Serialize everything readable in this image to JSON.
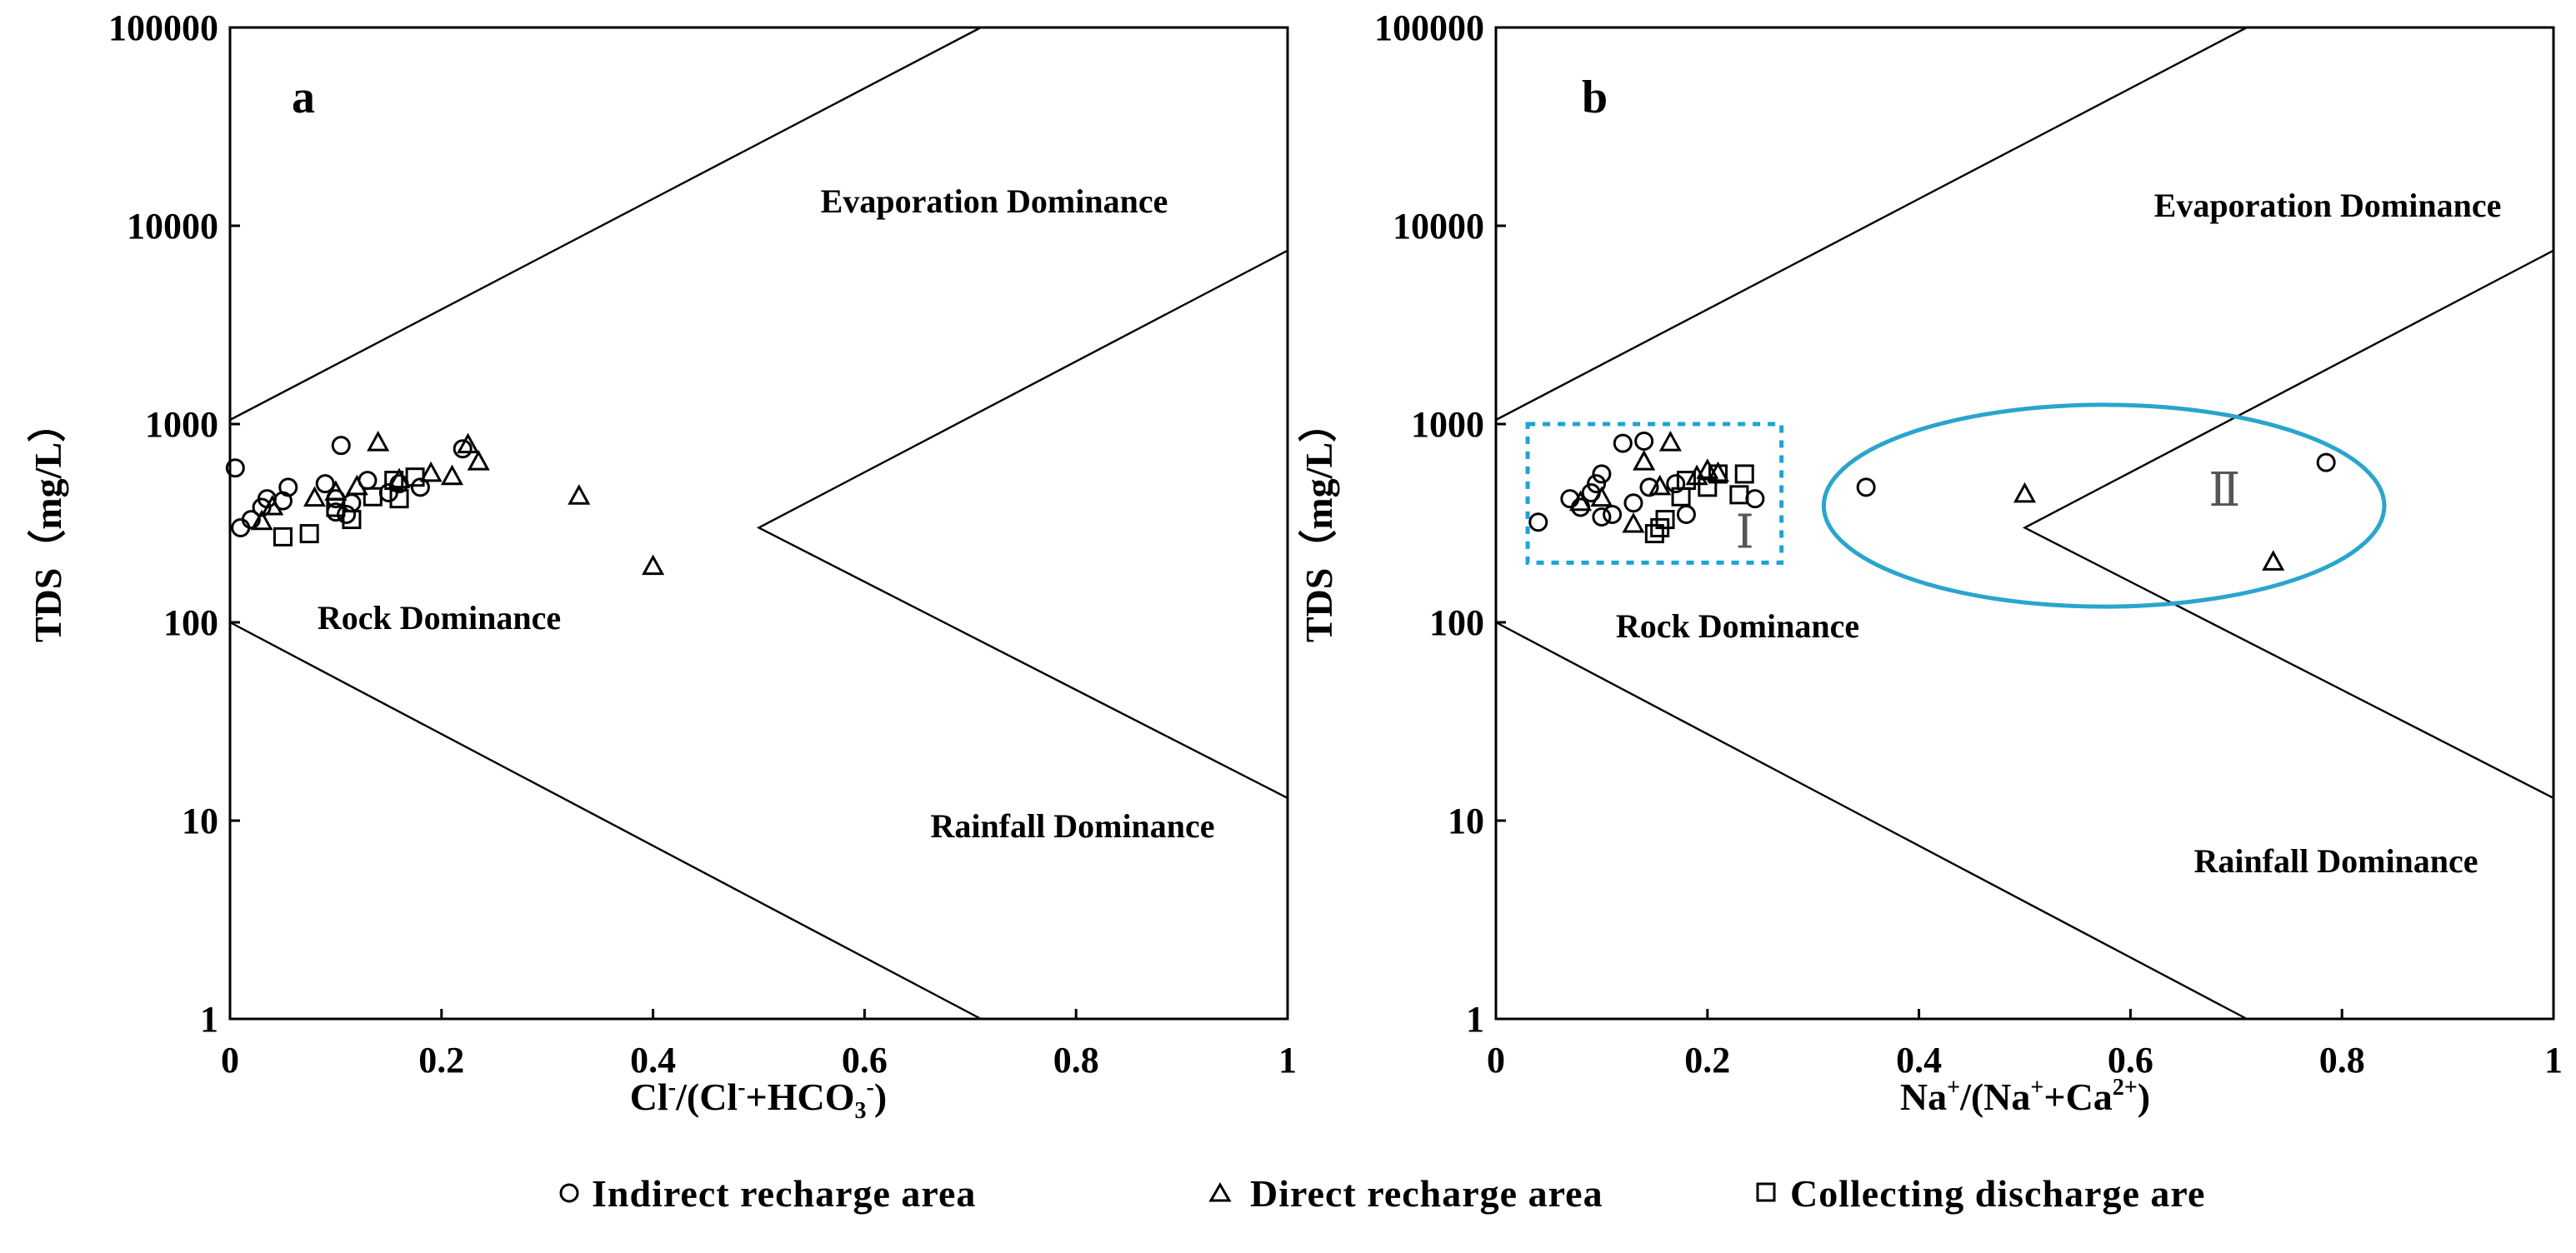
{
  "legend": {
    "items": [
      {
        "marker": "circle",
        "label": "Indirect recharge area"
      },
      {
        "marker": "triangle",
        "label": "Direct recharge area"
      },
      {
        "marker": "square",
        "label": "Collecting discharge are"
      }
    ]
  },
  "chart_data": [
    {
      "type": "scatter",
      "panel_label": "a",
      "xlabel": "Cl⁻/(Cl⁻+HCO₃⁻)",
      "ylabel": "TDS（mg/L）",
      "xlim": [
        0,
        1
      ],
      "ylim": [
        1,
        100000
      ],
      "yscale": "log",
      "x_ticks": [
        "0",
        "0.2",
        "0.4",
        "0.6",
        "0.8",
        "1"
      ],
      "x_tick_values": [
        0,
        0.2,
        0.4,
        0.6,
        0.8,
        1
      ],
      "y_ticks": [
        "1",
        "10",
        "100",
        "1000",
        "10000",
        "100000"
      ],
      "y_tick_values": [
        1,
        10,
        100,
        1000,
        10000,
        100000
      ],
      "regions": [
        "Evaporation Dominance",
        "Rock Dominance",
        "Rainfall Dominance"
      ],
      "boundaries": [
        {
          "name": "upper",
          "points": [
            [
              0,
              1050
            ],
            [
              0.71,
              100000
            ]
          ]
        },
        {
          "name": "lower",
          "points": [
            [
              0,
              100
            ],
            [
              0.71,
              1
            ]
          ]
        },
        {
          "name": "chevron",
          "points": [
            [
              1,
              7500
            ],
            [
              0.5,
              300
            ],
            [
              1,
              13
            ]
          ]
        }
      ],
      "series": [
        {
          "name": "Indirect recharge area",
          "marker": "circle",
          "points": [
            [
              0.005,
              600
            ],
            [
              0.01,
              300
            ],
            [
              0.02,
              330
            ],
            [
              0.03,
              380
            ],
            [
              0.035,
              420
            ],
            [
              0.05,
              410
            ],
            [
              0.055,
              480
            ],
            [
              0.09,
              500
            ],
            [
              0.1,
              360
            ],
            [
              0.1,
              420
            ],
            [
              0.105,
              780
            ],
            [
              0.11,
              350
            ],
            [
              0.115,
              400
            ],
            [
              0.13,
              520
            ],
            [
              0.15,
              450
            ],
            [
              0.16,
              500
            ],
            [
              0.18,
              480
            ],
            [
              0.22,
              750
            ]
          ]
        },
        {
          "name": "Direct recharge area",
          "marker": "triangle",
          "points": [
            [
              0.03,
              320
            ],
            [
              0.04,
              380
            ],
            [
              0.08,
              420
            ],
            [
              0.1,
              450
            ],
            [
              0.12,
              480
            ],
            [
              0.14,
              800
            ],
            [
              0.16,
              520
            ],
            [
              0.19,
              560
            ],
            [
              0.21,
              540
            ],
            [
              0.225,
              780
            ],
            [
              0.235,
              640
            ],
            [
              0.33,
              430
            ],
            [
              0.4,
              190
            ]
          ]
        },
        {
          "name": "Collecting discharge are",
          "marker": "square",
          "points": [
            [
              0.05,
              270
            ],
            [
              0.075,
              280
            ],
            [
              0.1,
              380
            ],
            [
              0.115,
              330
            ],
            [
              0.135,
              430
            ],
            [
              0.155,
              520
            ],
            [
              0.16,
              420
            ],
            [
              0.175,
              540
            ]
          ]
        }
      ]
    },
    {
      "type": "scatter",
      "panel_label": "b",
      "xlabel": "Na⁺/(Na⁺+Ca²⁺)",
      "ylabel": "TDS（mg/L）",
      "xlim": [
        0,
        1
      ],
      "ylim": [
        1,
        100000
      ],
      "yscale": "log",
      "x_ticks": [
        "0",
        "0.2",
        "0.4",
        "0.6",
        "0.8",
        "1"
      ],
      "x_tick_values": [
        0,
        0.2,
        0.4,
        0.6,
        0.8,
        1
      ],
      "y_ticks": [
        "1",
        "10",
        "100",
        "1000",
        "10000",
        "100000"
      ],
      "y_tick_values": [
        1,
        10,
        100,
        1000,
        10000,
        100000
      ],
      "regions": [
        "Evaporation Dominance",
        "Rock Dominance",
        "Rainfall Dominance"
      ],
      "boundaries": [
        {
          "name": "upper",
          "points": [
            [
              0,
              1050
            ],
            [
              0.71,
              100000
            ]
          ]
        },
        {
          "name": "lower",
          "points": [
            [
              0,
              100
            ],
            [
              0.71,
              1
            ]
          ]
        },
        {
          "name": "chevron",
          "points": [
            [
              1,
              7500
            ],
            [
              0.5,
              300
            ],
            [
              1,
              13
            ]
          ]
        }
      ],
      "annotations": [
        {
          "label": "Ⅰ",
          "shape": "dashed-rectangle",
          "color": "#1fa3d6",
          "x_range": [
            0.03,
            0.27
          ],
          "y_range": [
            200,
            1000
          ]
        },
        {
          "label": "Ⅱ",
          "shape": "ellipse",
          "color": "#2aa5cc",
          "x_range": [
            0.31,
            0.84
          ],
          "y_range": [
            120,
            1250
          ]
        }
      ],
      "series": [
        {
          "name": "Indirect recharge area",
          "marker": "circle",
          "points": [
            [
              0.04,
              320
            ],
            [
              0.07,
              420
            ],
            [
              0.08,
              380
            ],
            [
              0.09,
              450
            ],
            [
              0.095,
              500
            ],
            [
              0.1,
              560
            ],
            [
              0.1,
              340
            ],
            [
              0.11,
              350
            ],
            [
              0.12,
              800
            ],
            [
              0.13,
              400
            ],
            [
              0.14,
              820
            ],
            [
              0.145,
              480
            ],
            [
              0.17,
              500
            ],
            [
              0.18,
              350
            ],
            [
              0.245,
              420
            ],
            [
              0.35,
              480
            ],
            [
              0.785,
              640
            ]
          ]
        },
        {
          "name": "Direct recharge area",
          "marker": "triangle",
          "points": [
            [
              0.08,
              400
            ],
            [
              0.1,
              420
            ],
            [
              0.13,
              310
            ],
            [
              0.14,
              640
            ],
            [
              0.155,
              480
            ],
            [
              0.165,
              800
            ],
            [
              0.19,
              540
            ],
            [
              0.2,
              580
            ],
            [
              0.21,
              560
            ],
            [
              0.5,
              440
            ],
            [
              0.735,
              200
            ]
          ]
        },
        {
          "name": "Collecting discharge are",
          "marker": "square",
          "points": [
            [
              0.15,
              280
            ],
            [
              0.155,
              300
            ],
            [
              0.16,
              330
            ],
            [
              0.175,
              430
            ],
            [
              0.18,
              520
            ],
            [
              0.2,
              480
            ],
            [
              0.21,
              560
            ],
            [
              0.23,
              440
            ],
            [
              0.235,
              560
            ]
          ]
        }
      ]
    }
  ]
}
